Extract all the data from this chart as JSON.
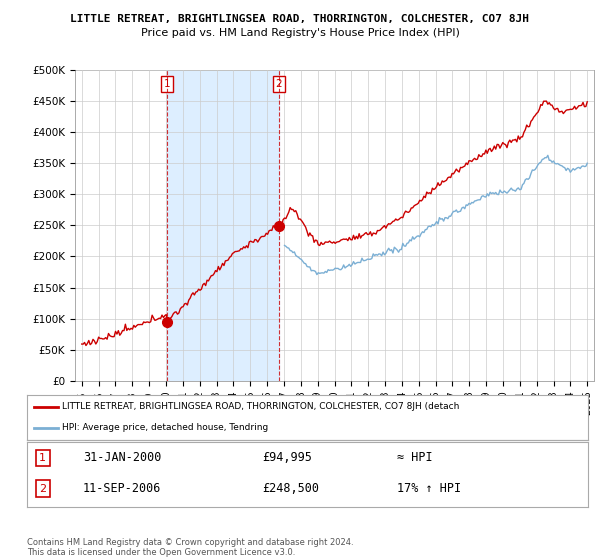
{
  "title": "LITTLE RETREAT, BRIGHTLINGSEA ROAD, THORRINGTON, COLCHESTER, CO7 8JH",
  "subtitle": "Price paid vs. HM Land Registry's House Price Index (HPI)",
  "ylabel_ticks": [
    "£0",
    "£50K",
    "£100K",
    "£150K",
    "£200K",
    "£250K",
    "£300K",
    "£350K",
    "£400K",
    "£450K",
    "£500K"
  ],
  "ytick_values": [
    0,
    50000,
    100000,
    150000,
    200000,
    250000,
    300000,
    350000,
    400000,
    450000,
    500000
  ],
  "ylim": [
    0,
    500000
  ],
  "xlim_start": 1994.6,
  "xlim_end": 2025.4,
  "transaction1": {
    "year": 2000.08,
    "price": 94995
  },
  "transaction2": {
    "year": 2006.71,
    "price": 248500
  },
  "vline1_x": 2000.08,
  "vline2_x": 2006.71,
  "legend_red_label": "LITTLE RETREAT, BRIGHTLINGSEA ROAD, THORRINGTON, COLCHESTER, CO7 8JH (detach",
  "legend_blue_label": "HPI: Average price, detached house, Tendring",
  "annotation1_date": "31-JAN-2000",
  "annotation1_price": "£94,995",
  "annotation1_hpi": "≈ HPI",
  "annotation2_date": "11-SEP-2006",
  "annotation2_price": "£248,500",
  "annotation2_hpi": "17% ↑ HPI",
  "footer": "Contains HM Land Registry data © Crown copyright and database right 2024.\nThis data is licensed under the Open Government Licence v3.0.",
  "red_color": "#cc0000",
  "blue_color": "#7bafd4",
  "shade_color": "#ddeeff",
  "vline_color": "#cc0000",
  "grid_color": "#cccccc",
  "background_color": "#ffffff",
  "plot_bg_color": "#ffffff",
  "xtick_years": [
    1995,
    1996,
    1997,
    1998,
    1999,
    2000,
    2001,
    2002,
    2003,
    2004,
    2005,
    2006,
    2007,
    2008,
    2009,
    2010,
    2011,
    2012,
    2013,
    2014,
    2015,
    2016,
    2017,
    2018,
    2019,
    2020,
    2021,
    2022,
    2023,
    2024,
    2025
  ]
}
